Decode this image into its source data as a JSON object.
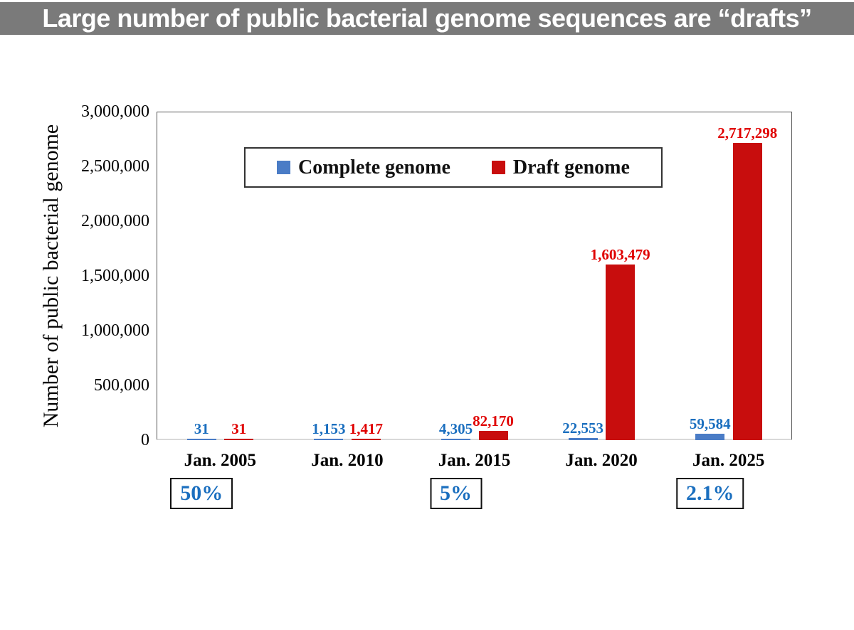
{
  "banner": {
    "title": "Large number of public bacterial genome sequences are “drafts”",
    "bg_color": "#7a7a7a",
    "text_color": "#ffffff"
  },
  "chart_data": {
    "type": "bar",
    "title": "",
    "ylabel": "Number of public bacterial genome",
    "xlabel": "",
    "categories": [
      "Jan. 2005",
      "Jan. 2010",
      "Jan. 2015",
      "Jan. 2020",
      "Jan. 2025"
    ],
    "series": [
      {
        "name": "Complete genome",
        "color": "#4a7cc6",
        "label_color": "#1b6fbf",
        "values": [
          31,
          1153,
          4305,
          22553,
          59584
        ],
        "labels": [
          "31",
          "1,153",
          "4,305",
          "22,553",
          "59,584"
        ]
      },
      {
        "name": "Draft genome",
        "color": "#c80d0d",
        "label_color": "#e00000",
        "values": [
          31,
          1417,
          82170,
          1603479,
          2717298
        ],
        "labels": [
          "31",
          "1,417",
          "82,170",
          "1,603,479",
          "2,717,298"
        ]
      }
    ],
    "ylim": [
      0,
      3000000
    ],
    "yticks": [
      "3,000,000",
      "2,500,000",
      "2,000,000",
      "1,500,000",
      "1,000,000",
      "500,000",
      "0"
    ],
    "legend_position": "top-center-inside",
    "grid": false,
    "annotations": [
      {
        "label": "50%",
        "category_index": 0
      },
      {
        "label": "5%",
        "category_index": 2
      },
      {
        "label": "2.1%",
        "category_index": 4
      }
    ]
  }
}
